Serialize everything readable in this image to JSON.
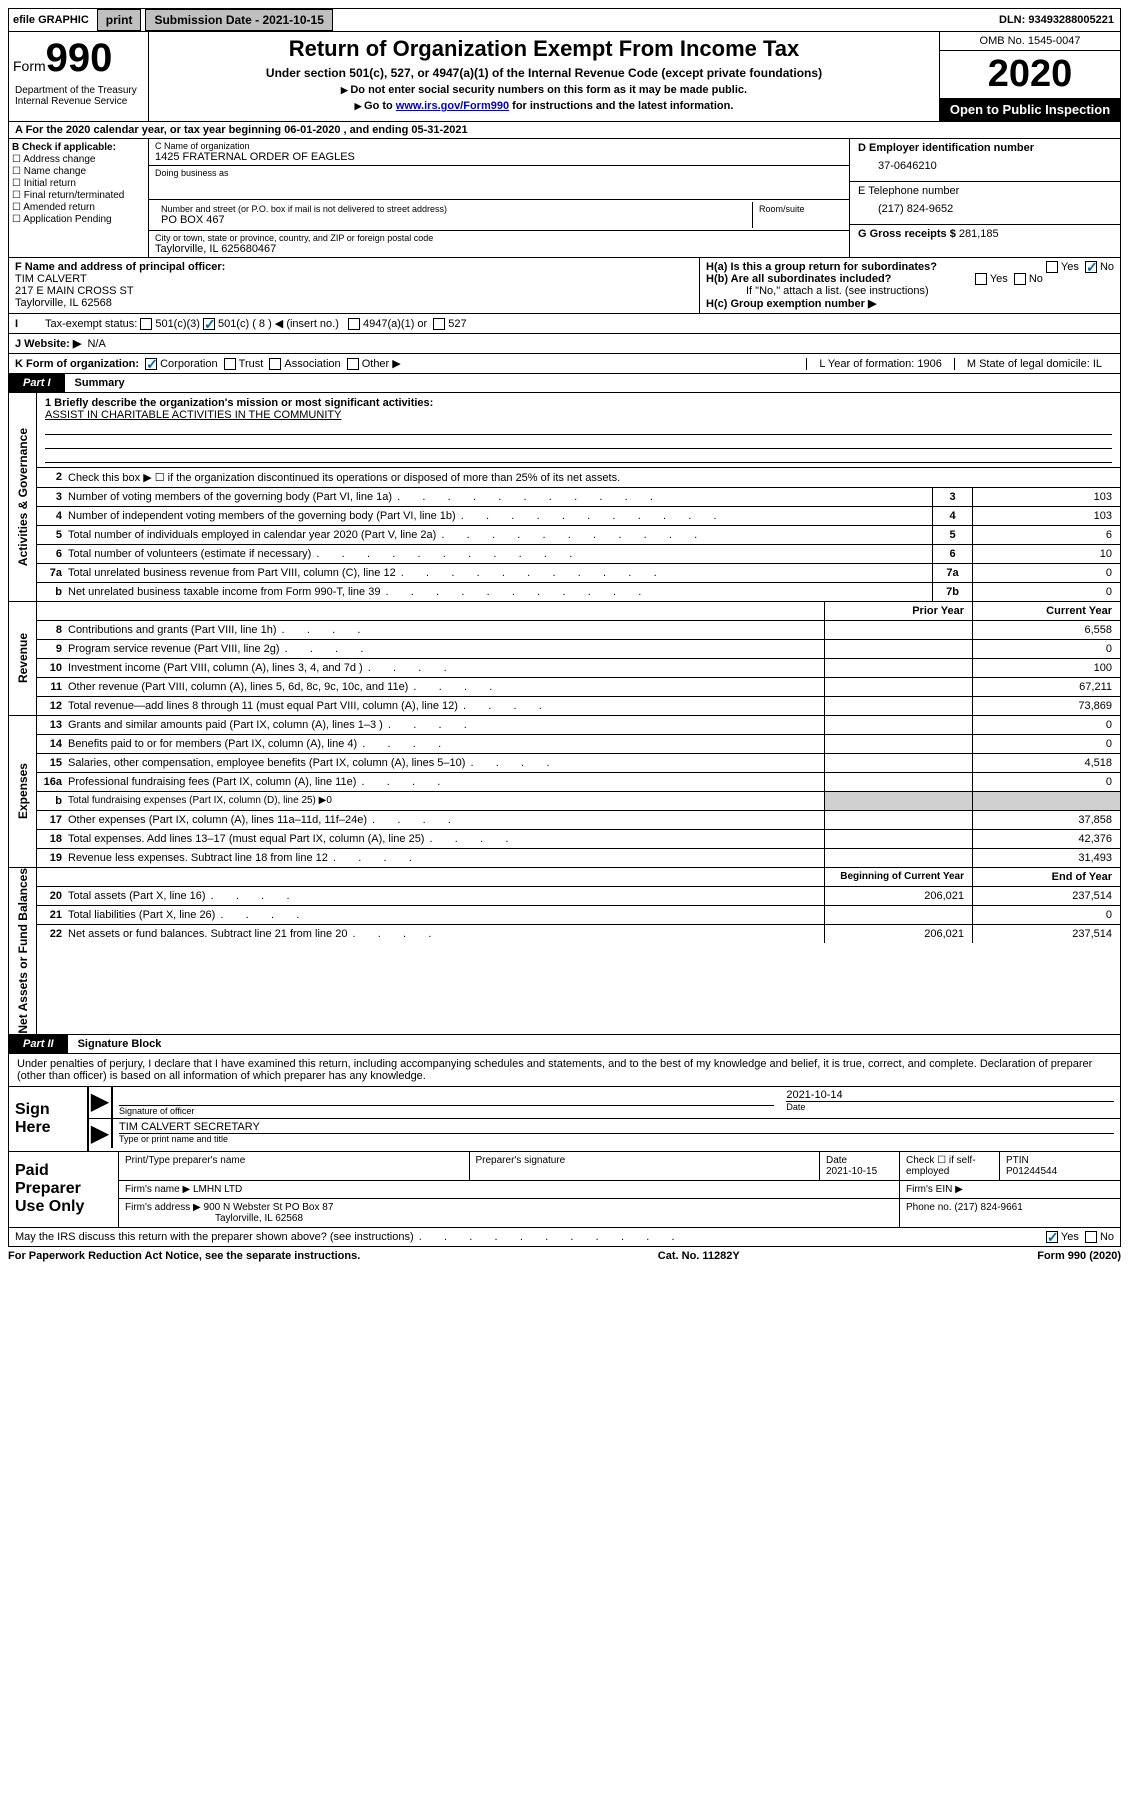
{
  "topbar": {
    "efile": "efile GRAPHIC",
    "print": "print",
    "subdate_label": "Submission Date - 2021-10-15",
    "dln": "DLN: 93493288005221"
  },
  "header": {
    "form_word": "Form",
    "form_num": "990",
    "dept": "Department of the Treasury\nInternal Revenue Service",
    "title": "Return of Organization Exempt From Income Tax",
    "subtitle": "Under section 501(c), 527, or 4947(a)(1) of the Internal Revenue Code (except private foundations)",
    "note1": "Do not enter social security numbers on this form as it may be made public.",
    "note2_pre": "Go to ",
    "note2_link": "www.irs.gov/Form990",
    "note2_post": " for instructions and the latest information.",
    "omb": "OMB No. 1545-0047",
    "year": "2020",
    "open": "Open to Public Inspection"
  },
  "rowA": "A For the 2020 calendar year, or tax year beginning 06-01-2020    , and ending 05-31-2021",
  "colB": {
    "title": "B Check if applicable:",
    "addr": "Address change",
    "name": "Name change",
    "init": "Initial return",
    "final": "Final return/terminated",
    "amend": "Amended return",
    "app": "Application Pending"
  },
  "colC": {
    "name_lbl": "C Name of organization",
    "name_val": "1425 FRATERNAL ORDER OF EAGLES",
    "dba_lbl": "Doing business as",
    "dba_val": "",
    "street_lbl": "Number and street (or P.O. box if mail is not delivered to street address)",
    "street_val": "PO BOX 467",
    "room_lbl": "Room/suite",
    "city_lbl": "City or town, state or province, country, and ZIP or foreign postal code",
    "city_val": "Taylorville, IL  625680467"
  },
  "colD": {
    "d_lbl": "D Employer identification number",
    "d_val": "37-0646210",
    "e_lbl": "E Telephone number",
    "e_val": "(217) 824-9652",
    "g_lbl": "G Gross receipts $",
    "g_val": "281,185"
  },
  "rowF": {
    "f_lbl": "F Name and address of principal officer:",
    "f_name": "TIM CALVERT",
    "f_addr1": "217 E MAIN CROSS ST",
    "f_addr2": "Taylorville, IL  62568",
    "ha": "H(a)  Is this a group return for subordinates?",
    "hb": "H(b)  Are all subordinates included?",
    "hb_note": "If \"No,\" attach a list. (see instructions)",
    "hc": "H(c)  Group exemption number ▶"
  },
  "rowI": {
    "label": "Tax-exempt status:",
    "c3": "501(c)(3)",
    "c": "501(c) ( 8 ) ◀ (insert no.)",
    "a1": "4947(a)(1) or",
    "527": "527"
  },
  "rowJ": {
    "label": "J    Website: ▶",
    "val": "N/A"
  },
  "rowK": {
    "label": "K Form of organization:",
    "corp": "Corporation",
    "trust": "Trust",
    "assoc": "Association",
    "other": "Other ▶",
    "l": "L Year of formation: 1906",
    "m": "M State of legal domicile: IL"
  },
  "partI": {
    "tab": "Part I",
    "label": "Summary"
  },
  "summary": {
    "vtab1": "Activities & Governance",
    "l1_lbl": "1   Briefly describe the organization's mission or most significant activities:",
    "l1_val": "ASSIST IN CHARITABLE ACTIVITIES IN THE COMMUNITY",
    "l2": "Check this box ▶ ☐  if the organization discontinued its operations or disposed of more than 25% of its net assets.",
    "lines_gov": [
      {
        "n": "3",
        "d": "Number of voting members of the governing body (Part VI, line 1a)",
        "b": "3",
        "v": "103"
      },
      {
        "n": "4",
        "d": "Number of independent voting members of the governing body (Part VI, line 1b)",
        "b": "4",
        "v": "103"
      },
      {
        "n": "5",
        "d": "Total number of individuals employed in calendar year 2020 (Part V, line 2a)",
        "b": "5",
        "v": "6"
      },
      {
        "n": "6",
        "d": "Total number of volunteers (estimate if necessary)",
        "b": "6",
        "v": "10"
      },
      {
        "n": "7a",
        "d": "Total unrelated business revenue from Part VIII, column (C), line 12",
        "b": "7a",
        "v": "0"
      },
      {
        "n": "b",
        "d": "Net unrelated business taxable income from Form 990-T, line 39",
        "b": "7b",
        "v": "0"
      }
    ],
    "vtab2": "Revenue",
    "hdr_prior": "Prior Year",
    "hdr_curr": "Current Year",
    "lines_rev": [
      {
        "n": "8",
        "d": "Contributions and grants (Part VIII, line 1h)",
        "p": "",
        "c": "6,558"
      },
      {
        "n": "9",
        "d": "Program service revenue (Part VIII, line 2g)",
        "p": "",
        "c": "0"
      },
      {
        "n": "10",
        "d": "Investment income (Part VIII, column (A), lines 3, 4, and 7d )",
        "p": "",
        "c": "100"
      },
      {
        "n": "11",
        "d": "Other revenue (Part VIII, column (A), lines 5, 6d, 8c, 9c, 10c, and 11e)",
        "p": "",
        "c": "67,211"
      },
      {
        "n": "12",
        "d": "Total revenue—add lines 8 through 11 (must equal Part VIII, column (A), line 12)",
        "p": "",
        "c": "73,869"
      }
    ],
    "vtab3": "Expenses",
    "lines_exp": [
      {
        "n": "13",
        "d": "Grants and similar amounts paid (Part IX, column (A), lines 1–3 )",
        "p": "",
        "c": "0"
      },
      {
        "n": "14",
        "d": "Benefits paid to or for members (Part IX, column (A), line 4)",
        "p": "",
        "c": "0"
      },
      {
        "n": "15",
        "d": "Salaries, other compensation, employee benefits (Part IX, column (A), lines 5–10)",
        "p": "",
        "c": "4,518"
      },
      {
        "n": "16a",
        "d": "Professional fundraising fees (Part IX, column (A), line 11e)",
        "p": "",
        "c": "0"
      },
      {
        "n": "b",
        "d": "Total fundraising expenses (Part IX, column (D), line 25) ▶0",
        "shade": true
      },
      {
        "n": "17",
        "d": "Other expenses (Part IX, column (A), lines 11a–11d, 11f–24e)",
        "p": "",
        "c": "37,858"
      },
      {
        "n": "18",
        "d": "Total expenses. Add lines 13–17 (must equal Part IX, column (A), line 25)",
        "p": "",
        "c": "42,376"
      },
      {
        "n": "19",
        "d": "Revenue less expenses. Subtract line 18 from line 12",
        "p": "",
        "c": "31,493"
      }
    ],
    "vtab4": "Net Assets or Fund Balances",
    "hdr_beg": "Beginning of Current Year",
    "hdr_end": "End of Year",
    "lines_net": [
      {
        "n": "20",
        "d": "Total assets (Part X, line 16)",
        "p": "206,021",
        "c": "237,514"
      },
      {
        "n": "21",
        "d": "Total liabilities (Part X, line 26)",
        "p": "",
        "c": "0"
      },
      {
        "n": "22",
        "d": "Net assets or fund balances. Subtract line 21 from line 20",
        "p": "206,021",
        "c": "237,514"
      }
    ]
  },
  "partII": {
    "tab": "Part II",
    "label": "Signature Block"
  },
  "sig": {
    "decl": "Under penalties of perjury, I declare that I have examined this return, including accompanying schedules and statements, and to the best of my knowledge and belief, it is true, correct, and complete. Declaration of preparer (other than officer) is based on all information of which preparer has any knowledge.",
    "sign_here": "Sign Here",
    "officer_lbl": "Signature of officer",
    "date_val": "2021-10-14",
    "date_lbl": "Date",
    "name_val": "TIM CALVERT SECRETARY",
    "name_lbl": "Type or print name and title"
  },
  "prep": {
    "title": "Paid Preparer Use Only",
    "h1": "Print/Type preparer's name",
    "h2": "Preparer's signature",
    "h3": "Date",
    "h3v": "2021-10-15",
    "h4": "Check ☐ if self-employed",
    "h5": "PTIN",
    "h5v": "P01244544",
    "firm_lbl": "Firm's name    ▶",
    "firm_val": "LMHN LTD",
    "ein_lbl": "Firm's EIN ▶",
    "addr_lbl": "Firm's address ▶",
    "addr_val": "900 N Webster St PO Box 87",
    "addr_val2": "Taylorville, IL  62568",
    "phone_lbl": "Phone no.",
    "phone_val": "(217) 824-9661"
  },
  "footer": {
    "discuss": "May the IRS discuss this return with the preparer shown above? (see instructions)",
    "yes": "Yes",
    "no": "No",
    "paperwork": "For Paperwork Reduction Act Notice, see the separate instructions.",
    "cat": "Cat. No. 11282Y",
    "form": "Form 990 (2020)"
  }
}
